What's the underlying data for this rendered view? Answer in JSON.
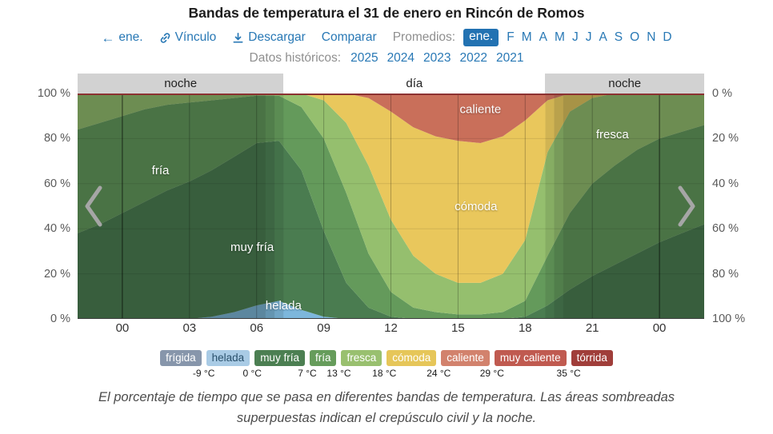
{
  "title": "Bandas de temperatura el 31 de enero en Rincón de Romos",
  "nav": {
    "prev_label": "ene.",
    "link_label": "Vínculo",
    "download_label": "Descargar",
    "compare_label": "Comparar",
    "averages_label": "Promedios:",
    "selected_month": "ene.",
    "months": [
      "F",
      "M",
      "A",
      "M",
      "J",
      "J",
      "A",
      "S",
      "O",
      "N",
      "D"
    ],
    "history_label": "Datos históricos:",
    "years": [
      "2025",
      "2024",
      "2023",
      "2022",
      "2021"
    ],
    "accent_color": "#2878b5"
  },
  "chart_data": {
    "type": "area",
    "stacked": true,
    "x_range": [
      -2,
      26
    ],
    "x_ticks": [
      0,
      3,
      6,
      9,
      12,
      15,
      18,
      21,
      24
    ],
    "x_tick_labels": [
      "00",
      "03",
      "06",
      "09",
      "12",
      "15",
      "18",
      "21",
      "00"
    ],
    "y_left_ticks": [
      "100 %",
      "80 %",
      "60 %",
      "40 %",
      "20 %",
      "0 %"
    ],
    "y_right_ticks": [
      "0 %",
      "20 %",
      "40 %",
      "60 %",
      "80 %",
      "100 %"
    ],
    "ylim": [
      0,
      100
    ],
    "hours": [
      -2,
      -1,
      0,
      1,
      2,
      3,
      4,
      5,
      6,
      7,
      8,
      9,
      10,
      11,
      12,
      13,
      14,
      15,
      16,
      17,
      18,
      19,
      20,
      21,
      22,
      23,
      24,
      25,
      26
    ],
    "series": [
      {
        "name": "helada",
        "color": "#7db7dc",
        "values": [
          0,
          0,
          0,
          0,
          0,
          0,
          1,
          3,
          6,
          8,
          4,
          1,
          0,
          0,
          0,
          0,
          0,
          0,
          0,
          0,
          0,
          0,
          0,
          0,
          0,
          0,
          0,
          0,
          0
        ]
      },
      {
        "name": "muy fría",
        "color": "#4a7c50",
        "values": [
          38,
          42,
          47,
          52,
          57,
          61,
          65,
          69,
          72,
          71,
          62,
          38,
          16,
          5,
          1,
          0,
          0,
          0,
          0,
          0,
          1,
          6,
          13,
          19,
          24,
          29,
          34,
          38,
          42
        ]
      },
      {
        "name": "fría",
        "color": "#649a5b",
        "values": [
          46,
          45,
          43,
          41,
          38,
          35,
          31,
          26,
          21,
          20,
          28,
          41,
          40,
          24,
          11,
          5,
          3,
          2,
          2,
          3,
          7,
          22,
          34,
          41,
          44,
          46,
          46,
          45,
          44
        ]
      },
      {
        "name": "fresca",
        "color": "#95bf6e",
        "values": [
          16,
          13,
          10,
          7,
          5,
          4,
          3,
          2,
          1,
          1,
          6,
          17,
          31,
          39,
          32,
          23,
          17,
          14,
          14,
          17,
          27,
          46,
          45,
          38,
          32,
          25,
          20,
          17,
          14
        ]
      },
      {
        "name": "cómoda",
        "color": "#e9c75c",
        "values": [
          0,
          0,
          0,
          0,
          0,
          0,
          0,
          0,
          0,
          0,
          0,
          3,
          13,
          30,
          48,
          57,
          61,
          63,
          62,
          61,
          53,
          23,
          8,
          2,
          0,
          0,
          0,
          0,
          0
        ]
      },
      {
        "name": "caliente",
        "color": "#c96f5a",
        "values": [
          0,
          0,
          0,
          0,
          0,
          0,
          0,
          0,
          0,
          0,
          0,
          0,
          0,
          2,
          8,
          15,
          19,
          21,
          22,
          19,
          12,
          3,
          0,
          0,
          0,
          0,
          0,
          0,
          0
        ]
      }
    ],
    "band_labels": [
      {
        "text": "fría",
        "hour": 1.7,
        "pct": 66
      },
      {
        "text": "muy fría",
        "hour": 5.8,
        "pct": 32
      },
      {
        "text": "helada",
        "hour": 7.2,
        "pct": 6
      },
      {
        "text": "cómoda",
        "hour": 15.8,
        "pct": 50
      },
      {
        "text": "caliente",
        "hour": 16.0,
        "pct": 93
      },
      {
        "text": "fresca",
        "hour": 21.9,
        "pct": 82
      }
    ],
    "day_night": {
      "night_label": "noche",
      "day_label": "día",
      "dawn": 7.2,
      "dusk": 18.9
    },
    "top_line_color": "#8c3232"
  },
  "legend": {
    "bands": [
      {
        "label": "frígida",
        "color": "#8796ab",
        "text": "#ffffff"
      },
      {
        "label": "helada",
        "color": "#a9cbe5",
        "text": "#29506b"
      },
      {
        "label": "muy fría",
        "color": "#4c7f52",
        "text": "#ffffff"
      },
      {
        "label": "fría",
        "color": "#669c5b",
        "text": "#ffffff"
      },
      {
        "label": "fresca",
        "color": "#99c06f",
        "text": "#ffffff"
      },
      {
        "label": "cómoda",
        "color": "#e6c659",
        "text": "#ffffff"
      },
      {
        "label": "caliente",
        "color": "#d2826d",
        "text": "#ffffff"
      },
      {
        "label": "muy caliente",
        "color": "#c05a50",
        "text": "#ffffff"
      },
      {
        "label": "tórrida",
        "color": "#a03e3a",
        "text": "#ffffff"
      }
    ],
    "thresholds": [
      "-9 °C",
      "0 °C",
      "7 °C",
      "13 °C",
      "18 °C",
      "24 °C",
      "29 °C",
      "35 °C"
    ]
  },
  "caption": "El porcentaje de tiempo que se pasa en diferentes bandas de temperatura. Las áreas sombreadas superpuestas indican el crepúsculo civil y la noche."
}
